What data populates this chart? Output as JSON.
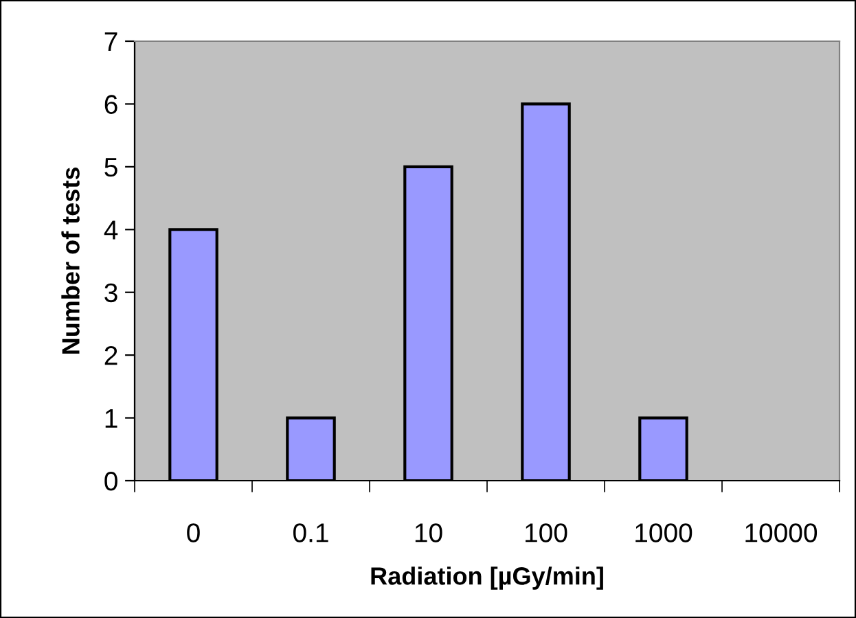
{
  "chart_data": {
    "type": "bar",
    "xlabel": "Radiation [µGy/min]",
    "ylabel": "Number of tests",
    "categories": [
      "0",
      "0.1",
      "10",
      "100",
      "1000",
      "10000"
    ],
    "series": [
      {
        "color": "#9999ff",
        "values": [
          4,
          1,
          5,
          6,
          1,
          0
        ]
      }
    ],
    "ylim": [
      0,
      7
    ],
    "yticks": [
      0,
      1,
      2,
      3,
      4,
      5,
      6,
      7
    ],
    "grid": false,
    "legend": false
  }
}
